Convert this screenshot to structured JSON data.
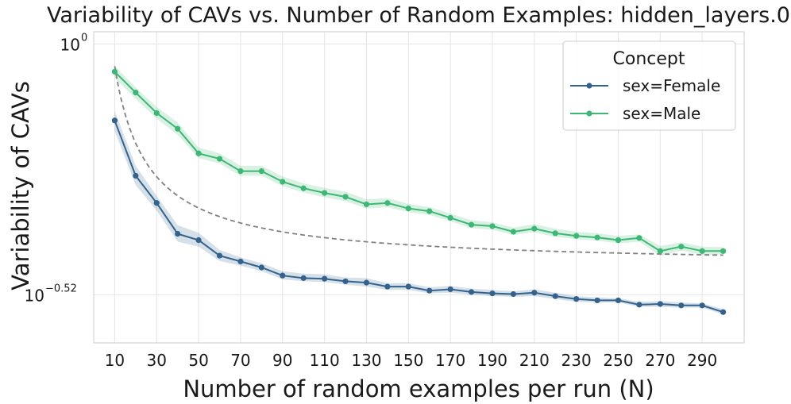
{
  "chart_data": {
    "type": "line",
    "title": "Variability of CAVs vs. Number of Random Examples: hidden_layers.0",
    "xlabel": "Number of random examples per run (N)",
    "ylabel": "Variability of CAVs",
    "yscale": "log",
    "ylim": [
      0.24,
      1.06
    ],
    "xlim": [
      0,
      310
    ],
    "x": [
      10,
      20,
      30,
      40,
      50,
      60,
      70,
      80,
      90,
      100,
      110,
      120,
      130,
      140,
      150,
      160,
      170,
      180,
      190,
      200,
      210,
      220,
      230,
      240,
      250,
      260,
      270,
      280,
      290,
      300
    ],
    "x_ticks": [
      10,
      30,
      50,
      70,
      90,
      110,
      130,
      150,
      170,
      190,
      210,
      230,
      250,
      270,
      290
    ],
    "x_tick_labels": [
      "10",
      "30",
      "50",
      "70",
      "90",
      "110",
      "130",
      "150",
      "170",
      "190",
      "210",
      "230",
      "250",
      "270",
      "290"
    ],
    "y_ticks": [
      {
        "value": 1.0,
        "base": "10",
        "exp": "0"
      },
      {
        "value": 0.302,
        "base": "10",
        "exp": "−0.52"
      }
    ],
    "grid": true,
    "legend": {
      "title": "Concept",
      "position": "top-right"
    },
    "series": [
      {
        "name": "sex=Female",
        "color": "#33638d",
        "values": [
          0.694,
          0.533,
          0.468,
          0.404,
          0.392,
          0.364,
          0.354,
          0.344,
          0.331,
          0.327,
          0.326,
          0.322,
          0.32,
          0.314,
          0.314,
          0.308,
          0.31,
          0.306,
          0.304,
          0.303,
          0.305,
          0.3,
          0.296,
          0.294,
          0.294,
          0.288,
          0.289,
          0.287,
          0.287,
          0.278
        ],
        "lower": [
          0.66,
          0.51,
          0.451,
          0.389,
          0.38,
          0.355,
          0.347,
          0.338,
          0.325,
          0.322,
          0.321,
          0.317,
          0.314,
          0.309,
          0.309,
          0.304,
          0.305,
          0.302,
          0.3,
          0.299,
          0.3,
          0.296,
          0.292,
          0.291,
          0.291,
          0.285,
          0.285,
          0.284,
          0.284,
          0.275
        ],
        "upper": [
          0.727,
          0.559,
          0.484,
          0.421,
          0.406,
          0.374,
          0.361,
          0.351,
          0.338,
          0.334,
          0.333,
          0.328,
          0.327,
          0.319,
          0.319,
          0.313,
          0.315,
          0.311,
          0.309,
          0.307,
          0.31,
          0.305,
          0.3,
          0.298,
          0.297,
          0.292,
          0.293,
          0.291,
          0.29,
          0.282
        ]
      },
      {
        "name": "sex=Male",
        "color": "#3cb775",
        "values": [
          0.876,
          0.793,
          0.719,
          0.667,
          0.593,
          0.578,
          0.545,
          0.545,
          0.518,
          0.502,
          0.491,
          0.482,
          0.465,
          0.468,
          0.456,
          0.45,
          0.436,
          0.422,
          0.419,
          0.408,
          0.414,
          0.405,
          0.4,
          0.397,
          0.392,
          0.396,
          0.372,
          0.38,
          0.372,
          0.372
        ],
        "lower": [
          0.85,
          0.77,
          0.7,
          0.648,
          0.58,
          0.565,
          0.533,
          0.533,
          0.507,
          0.492,
          0.481,
          0.472,
          0.456,
          0.459,
          0.448,
          0.442,
          0.429,
          0.415,
          0.412,
          0.402,
          0.407,
          0.398,
          0.394,
          0.391,
          0.386,
          0.389,
          0.364,
          0.373,
          0.365,
          0.366
        ],
        "upper": [
          0.9,
          0.813,
          0.74,
          0.687,
          0.61,
          0.593,
          0.559,
          0.559,
          0.531,
          0.514,
          0.503,
          0.494,
          0.476,
          0.479,
          0.466,
          0.459,
          0.445,
          0.431,
          0.427,
          0.416,
          0.423,
          0.414,
          0.408,
          0.405,
          0.4,
          0.403,
          0.381,
          0.388,
          0.38,
          0.379
        ]
      }
    ],
    "reference_curve": {
      "style": "dashed",
      "color": "#808080",
      "form": "a + b / N",
      "a": 0.3464,
      "b": 5.5272,
      "x_range": [
        10,
        300
      ]
    }
  }
}
